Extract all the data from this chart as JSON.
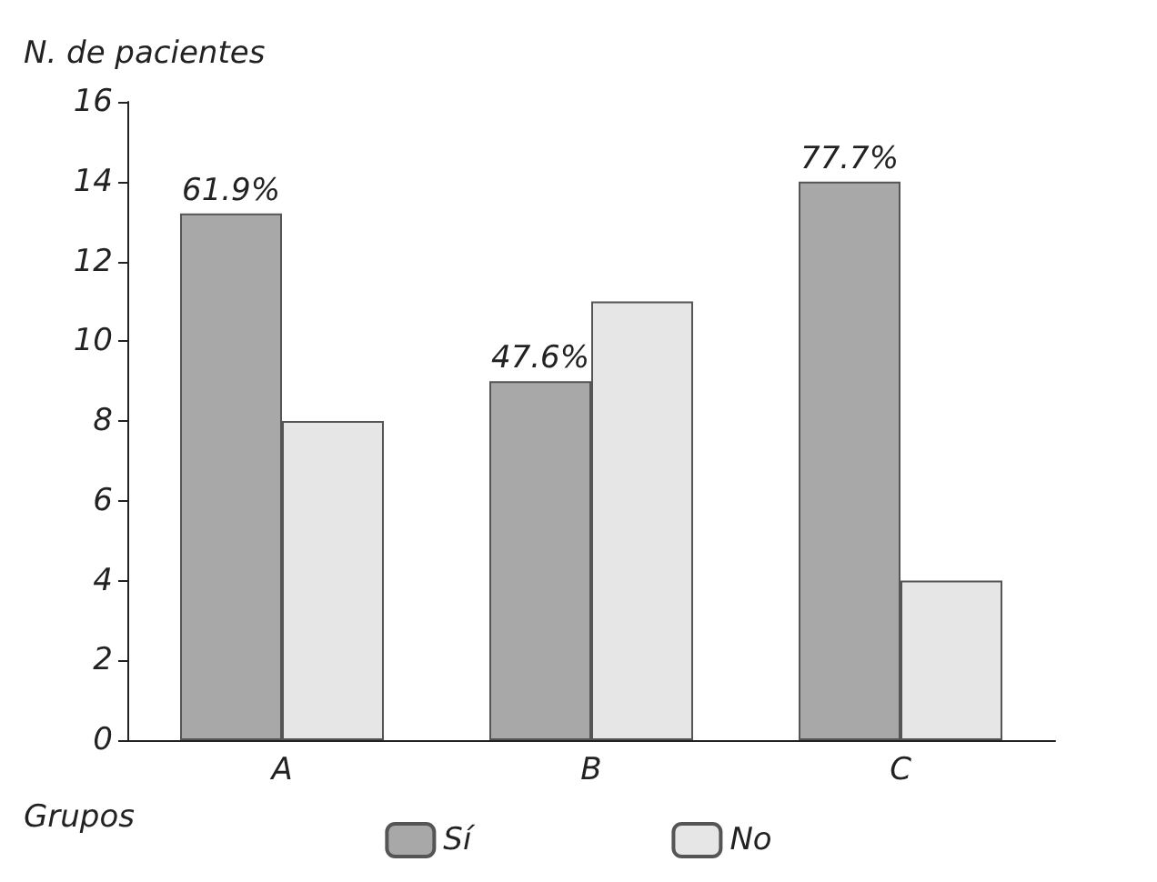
{
  "chart_data": {
    "type": "bar",
    "ylabel": "N. de pacientes",
    "xlabel": "Grupos",
    "categories": [
      "A",
      "B",
      "C"
    ],
    "series": [
      {
        "name": "Sí",
        "color": "#a8a8a8",
        "values": [
          13.2,
          9,
          14
        ]
      },
      {
        "name": "No",
        "color": "#e6e6e6",
        "values": [
          8,
          11,
          4
        ]
      }
    ],
    "annotations": [
      {
        "text": "61.9%",
        "x": "A",
        "y": 13.2
      },
      {
        "text": "47.6%",
        "x": "B",
        "y": 9
      },
      {
        "text": "77.7%",
        "x": "C",
        "y": 14
      }
    ],
    "ylim": [
      0,
      16
    ],
    "yticks": [
      0,
      2,
      4,
      6,
      8,
      10,
      12,
      14,
      16
    ],
    "grid": false,
    "legend": "bottom"
  }
}
